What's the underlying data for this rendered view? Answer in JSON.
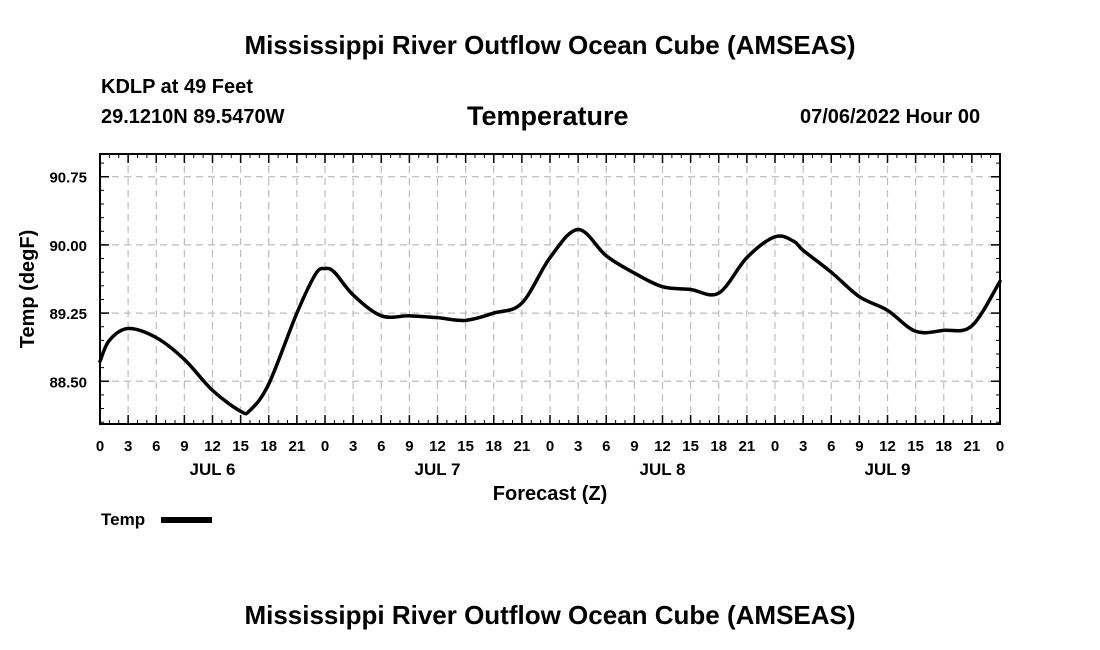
{
  "header": {
    "title": "Mississippi River Outflow Ocean Cube (AMSEAS)",
    "station": "KDLP at 49 Feet",
    "coords": "29.1210N  89.5470W",
    "date": "07/06/2022 Hour 00"
  },
  "footer": {
    "title": "Mississippi River Outflow Ocean Cube (AMSEAS)"
  },
  "chart_data": {
    "type": "line",
    "title": "Temperature",
    "xlabel": "Forecast (Z)",
    "ylabel": "Temp (degF)",
    "ylim": [
      88.03,
      91.0
    ],
    "yticks": [
      88.5,
      89.25,
      90.0,
      90.75
    ],
    "ytick_labels": [
      "88.50",
      "89.25",
      "90.00",
      "90.75"
    ],
    "xlim": [
      0,
      96
    ],
    "xticks": [
      0,
      3,
      6,
      9,
      12,
      15,
      18,
      21,
      24,
      27,
      30,
      33,
      36,
      39,
      42,
      45,
      48,
      51,
      54,
      57,
      60,
      63,
      66,
      69,
      72,
      75,
      78,
      81,
      84,
      87,
      90,
      93,
      96
    ],
    "xtick_labels": [
      "0",
      "3",
      "6",
      "9",
      "12",
      "15",
      "18",
      "21",
      "0",
      "3",
      "6",
      "9",
      "12",
      "15",
      "18",
      "21",
      "0",
      "3",
      "6",
      "9",
      "12",
      "15",
      "18",
      "21",
      "0",
      "3",
      "6",
      "9",
      "12",
      "15",
      "18",
      "21",
      "0"
    ],
    "day_labels": [
      {
        "label": "JUL 6",
        "hour": 12
      },
      {
        "label": "JUL 7",
        "hour": 36
      },
      {
        "label": "JUL 8",
        "hour": 60
      },
      {
        "label": "JUL 9",
        "hour": 84
      }
    ],
    "grid": true,
    "legend": {
      "label": "Temp",
      "position": "bottom-left"
    },
    "series": [
      {
        "name": "Temp",
        "x": [
          0,
          1,
          3,
          6,
          9,
          12,
          15,
          16,
          18,
          21,
          23,
          24,
          25,
          27,
          30,
          33,
          36,
          39,
          42,
          45,
          48,
          51,
          54,
          57,
          60,
          63,
          66,
          69,
          72,
          74,
          75,
          78,
          81,
          84,
          87,
          90,
          93,
          96
        ],
        "values": [
          88.72,
          88.95,
          89.08,
          88.98,
          88.74,
          88.4,
          88.17,
          88.18,
          88.47,
          89.25,
          89.68,
          89.74,
          89.7,
          89.45,
          89.22,
          89.22,
          89.2,
          89.17,
          89.25,
          89.36,
          89.86,
          90.17,
          89.88,
          89.69,
          89.54,
          89.51,
          89.47,
          89.86,
          90.09,
          90.04,
          89.94,
          89.7,
          89.43,
          89.28,
          89.05,
          89.06,
          89.11,
          89.6
        ]
      }
    ]
  }
}
